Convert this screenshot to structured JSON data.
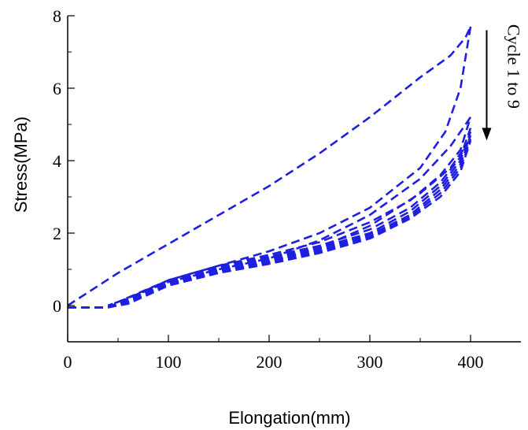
{
  "chart_data": {
    "type": "line",
    "title": "",
    "xlabel": "Elongation(mm)",
    "ylabel": "Stress(MPa)",
    "xlim": [
      0,
      450
    ],
    "ylim": [
      -1,
      8
    ],
    "xticks": [
      0,
      100,
      200,
      300,
      400
    ],
    "yticks": [
      0,
      2,
      4,
      6,
      8
    ],
    "xtick_labels": [
      "0",
      "100",
      "200",
      "300",
      "400"
    ],
    "ytick_labels": [
      "0",
      "2",
      "4",
      "6",
      "8"
    ],
    "grid": false,
    "legend": "none",
    "line_color": "#1f1fe0",
    "line_style": "dashed",
    "annotation": {
      "text": "Cycle 1 to 9",
      "arrow_from": [
        416,
        7.6
      ],
      "arrow_to": [
        416,
        4.6
      ]
    },
    "series": [
      {
        "x": [
          0,
          50,
          100,
          150,
          200,
          250,
          300,
          350,
          380,
          395,
          400
        ],
        "y": [
          0,
          0.9,
          1.7,
          2.5,
          3.3,
          4.2,
          5.2,
          6.3,
          6.9,
          7.4,
          7.7
        ]
      },
      {
        "x": [
          400,
          390,
          375,
          350,
          300,
          250,
          200,
          150,
          100,
          50,
          40
        ],
        "y": [
          7.7,
          6.0,
          4.8,
          3.8,
          2.7,
          2.0,
          1.5,
          1.1,
          0.7,
          0.1,
          0
        ]
      },
      {
        "x": [
          0,
          40,
          60,
          100,
          150,
          200,
          250,
          300,
          340,
          370,
          390,
          400
        ],
        "y": [
          -0.05,
          -0.05,
          0.2,
          0.7,
          1.1,
          1.4,
          1.75,
          2.3,
          2.9,
          3.6,
          4.3,
          5.2
        ]
      },
      {
        "x": [
          400,
          395,
          380,
          350,
          300,
          250,
          200,
          150,
          100,
          50,
          40
        ],
        "y": [
          5.2,
          5.0,
          4.4,
          3.5,
          2.5,
          1.8,
          1.3,
          1.0,
          0.65,
          0.1,
          0
        ]
      },
      {
        "x": [
          0,
          40,
          60,
          100,
          150,
          200,
          250,
          300,
          340,
          370,
          390,
          400
        ],
        "y": [
          -0.05,
          -0.05,
          0.15,
          0.65,
          1.05,
          1.35,
          1.65,
          2.1,
          2.7,
          3.4,
          4.1,
          4.9
        ]
      },
      {
        "x": [
          0,
          40,
          60,
          100,
          150,
          200,
          250,
          300,
          340,
          370,
          390,
          400
        ],
        "y": [
          -0.05,
          -0.05,
          0.12,
          0.62,
          1.0,
          1.3,
          1.6,
          2.0,
          2.6,
          3.3,
          4.0,
          4.8
        ]
      },
      {
        "x": [
          0,
          40,
          60,
          100,
          150,
          200,
          250,
          300,
          340,
          370,
          390,
          400
        ],
        "y": [
          -0.05,
          -0.05,
          0.1,
          0.6,
          0.97,
          1.25,
          1.55,
          1.95,
          2.5,
          3.2,
          3.9,
          4.7
        ]
      },
      {
        "x": [
          0,
          40,
          60,
          100,
          150,
          200,
          250,
          300,
          340,
          370,
          390,
          400
        ],
        "y": [
          -0.05,
          -0.05,
          0.08,
          0.58,
          0.94,
          1.2,
          1.5,
          1.9,
          2.45,
          3.1,
          3.8,
          4.6
        ]
      },
      {
        "x": [
          0,
          40,
          60,
          100,
          150,
          200,
          250,
          300,
          340,
          370,
          390,
          400
        ],
        "y": [
          -0.05,
          -0.05,
          0.05,
          0.55,
          0.9,
          1.15,
          1.45,
          1.85,
          2.4,
          3.0,
          3.7,
          4.55
        ]
      },
      {
        "x": [
          400,
          395,
          380,
          350,
          300,
          250,
          200,
          150,
          100,
          50,
          40
        ],
        "y": [
          4.6,
          4.4,
          3.8,
          3.1,
          2.2,
          1.6,
          1.2,
          0.9,
          0.6,
          0.05,
          -0.05
        ]
      }
    ]
  }
}
